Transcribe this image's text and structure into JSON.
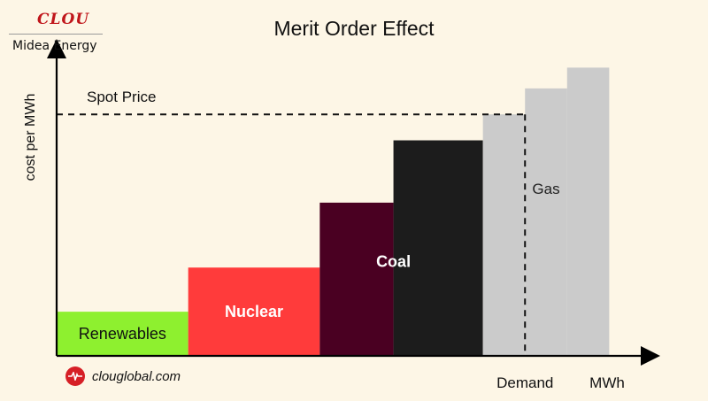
{
  "logo": {
    "mark": "CLOU",
    "company": "Midea Energy",
    "icon": "clou-logo-icon",
    "brand_color": "#c0161b"
  },
  "website": {
    "text": "clouglobal.com",
    "icon": "heartbeat-icon",
    "color": "#d61f26"
  },
  "chart_data": {
    "type": "bar",
    "title": "Merit Order Effect",
    "xlabel": "MWh",
    "ylabel": "cost per MWh",
    "grid": false,
    "legend": "none",
    "categories": [
      "Renewables",
      "Nuclear",
      "Coal",
      "Coal",
      "Gas",
      "Gas",
      "Gas"
    ],
    "labels": [
      "Renewables",
      "Nuclear",
      "Coal",
      "",
      "Gas",
      "",
      ""
    ],
    "values": [
      1.7,
      3.4,
      5.9,
      8.3,
      9.3,
      10.3,
      11.1
    ],
    "widths": [
      2.5,
      2.5,
      1.4,
      1.7,
      0.8,
      0.8,
      0.8
    ],
    "colors": [
      "#8ef02f",
      "#ff3b3b",
      "#4a0022",
      "#1c1c1c",
      "#cbcbcb",
      "#cbcbcb",
      "#cbcbcb"
    ],
    "label_colors": [
      "#111111",
      "#ffffff",
      "#ffffff",
      "#ffffff",
      "#222222",
      "#222222",
      "#222222"
    ],
    "xlim": [
      0,
      11.2
    ],
    "ylim": [
      0,
      12
    ],
    "annotations": [
      {
        "text": "Spot Price",
        "type": "horizontal-dashed",
        "value": 9.3
      },
      {
        "text": "Demand",
        "type": "vertical-dashed",
        "value": 8.9
      }
    ]
  }
}
